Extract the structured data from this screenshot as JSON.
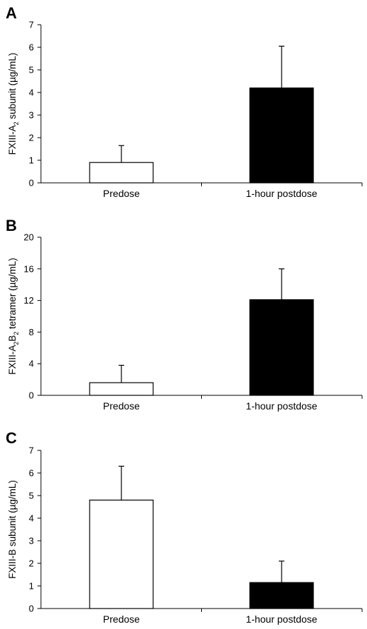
{
  "chart_data": [
    {
      "type": "bar",
      "panel": "A",
      "categories": [
        "Predose",
        "1-hour postdose"
      ],
      "values": [
        0.9,
        4.2
      ],
      "errors": [
        0.75,
        1.85
      ],
      "colors": [
        "#ffffff",
        "#000000"
      ],
      "ylim": [
        0,
        7
      ],
      "yticks": [
        "0",
        "1",
        "2",
        "3",
        "4",
        "5",
        "6",
        "7"
      ],
      "ylabel": {
        "main": "FXIII-A",
        "sub1": "2",
        "mid": "",
        "sub2": "",
        "rest": " subunit (µg/mL)"
      }
    },
    {
      "type": "bar",
      "panel": "B",
      "categories": [
        "Predose",
        "1-hour postdose"
      ],
      "values": [
        1.6,
        12.1
      ],
      "errors": [
        2.2,
        3.9
      ],
      "colors": [
        "#ffffff",
        "#000000"
      ],
      "ylim": [
        0,
        20
      ],
      "yticks": [
        "0",
        "4",
        "8",
        "12",
        "16",
        "20"
      ],
      "ylabel": {
        "main": "FXIII-A",
        "sub1": "2",
        "mid": "B",
        "sub2": "2",
        "rest": " tetramer (µg/mL)"
      }
    },
    {
      "type": "bar",
      "panel": "C",
      "categories": [
        "Predose",
        "1-hour postdose"
      ],
      "values": [
        4.8,
        1.15
      ],
      "errors": [
        1.5,
        0.95
      ],
      "colors": [
        "#ffffff",
        "#000000"
      ],
      "ylim": [
        0,
        7
      ],
      "yticks": [
        "0",
        "1",
        "2",
        "3",
        "4",
        "5",
        "6",
        "7"
      ],
      "ylabel": {
        "main": "FXIII-B subunit (µg/mL)",
        "sub1": "",
        "mid": "",
        "sub2": "",
        "rest": ""
      }
    }
  ]
}
